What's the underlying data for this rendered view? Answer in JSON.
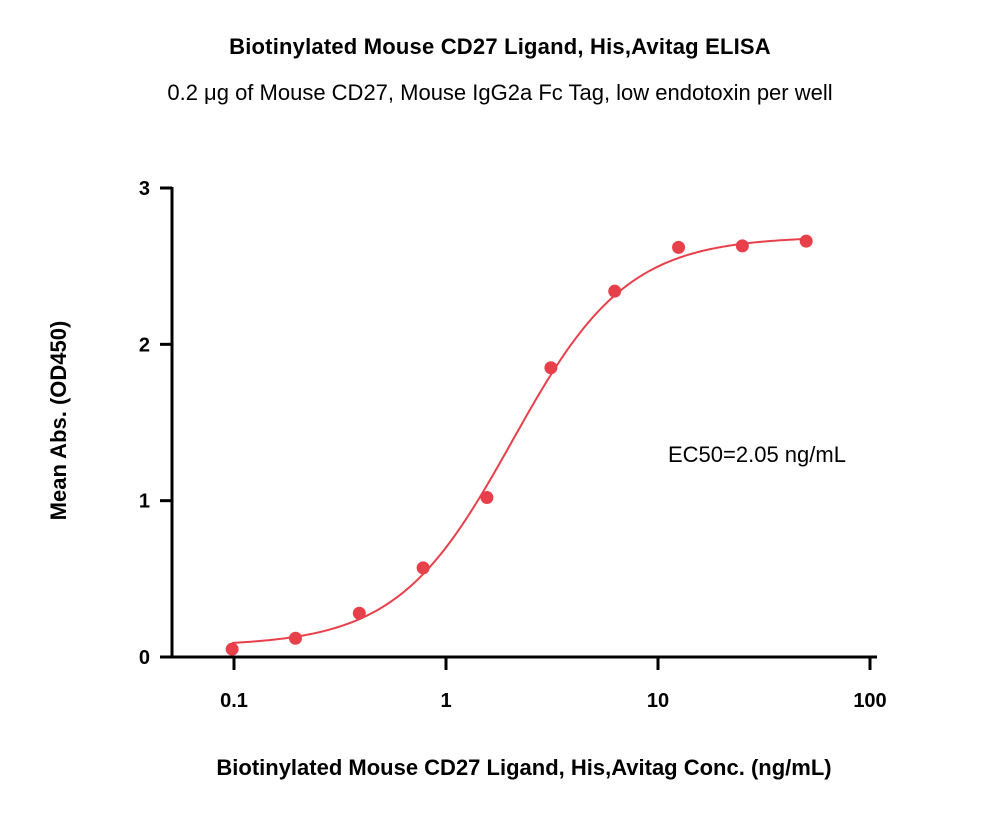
{
  "chart_data": {
    "type": "scatter",
    "title": "Biotinylated Mouse CD27 Ligand, His,Avitag ELISA",
    "subtitle": "0.2 μg of Mouse CD27, Mouse IgG2a Fc Tag, low endotoxin per well",
    "xlabel": "Biotinylated Mouse CD27 Ligand, His,Avitag Conc. (ng/mL)",
    "ylabel": "Mean Abs. (OD450)",
    "x_scale": "log",
    "xlim": [
      0.05,
      100
    ],
    "ylim": [
      0,
      3
    ],
    "x_ticks": [
      0.1,
      1,
      10,
      100
    ],
    "x_tick_labels": [
      "0.1",
      "1",
      "10",
      "100"
    ],
    "y_ticks": [
      0,
      1,
      2,
      3
    ],
    "y_tick_labels": [
      "0",
      "1",
      "2",
      "3"
    ],
    "series": [
      {
        "x": [
          0.098,
          0.195,
          0.39,
          0.78,
          1.56,
          3.125,
          6.25,
          12.5,
          25,
          50
        ],
        "y": [
          0.05,
          0.12,
          0.28,
          0.57,
          1.02,
          1.85,
          2.34,
          2.62,
          2.63,
          2.66
        ],
        "color": "#e8404a"
      }
    ],
    "fit_curve": {
      "type": "4PL",
      "bottom": 0.07,
      "top": 2.69,
      "ec50": 2.05,
      "hill": 1.6,
      "color": "#e8404a"
    },
    "annotation": "EC50=2.05 ng/mL",
    "grid": false,
    "legend": "none"
  }
}
